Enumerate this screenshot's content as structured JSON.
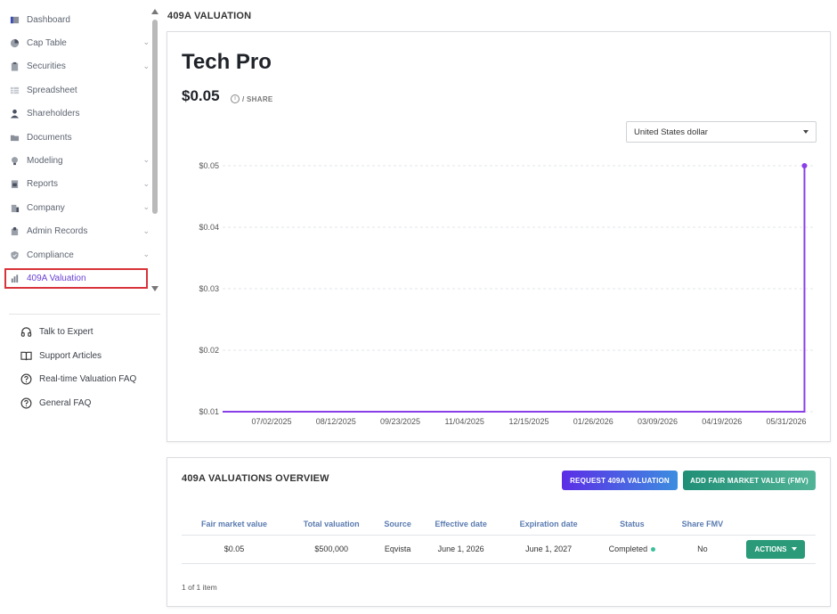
{
  "sidebar": {
    "items": [
      {
        "label": "Dashboard",
        "icon": "dashboard-icon",
        "chevron": false
      },
      {
        "label": "Cap Table",
        "icon": "pie-chart-icon",
        "chevron": true
      },
      {
        "label": "Securities",
        "icon": "clipboard-icon",
        "chevron": true
      },
      {
        "label": "Spreadsheet",
        "icon": "spreadsheet-icon",
        "chevron": false
      },
      {
        "label": "Shareholders",
        "icon": "user-icon",
        "chevron": false
      },
      {
        "label": "Documents",
        "icon": "folder-icon",
        "chevron": false
      },
      {
        "label": "Modeling",
        "icon": "lightbulb-icon",
        "chevron": true
      },
      {
        "label": "Reports",
        "icon": "report-icon",
        "chevron": true
      },
      {
        "label": "Company",
        "icon": "building-icon",
        "chevron": true
      },
      {
        "label": "Admin Records",
        "icon": "admin-icon",
        "chevron": true
      },
      {
        "label": "Compliance",
        "icon": "shield-icon",
        "chevron": true
      },
      {
        "label": "409A Valuation",
        "icon": "bar-chart-icon",
        "chevron": false,
        "active": true
      }
    ],
    "chevron_glyph": "⌄",
    "help": [
      {
        "label": "Talk to Expert",
        "icon": "headset-icon"
      },
      {
        "label": "Support Articles",
        "icon": "book-icon"
      },
      {
        "label": "Real-time Valuation FAQ",
        "icon": "question-circle-icon"
      },
      {
        "label": "General FAQ",
        "icon": "question-circle-icon"
      }
    ]
  },
  "header": {
    "title": "409A VALUATION"
  },
  "summary": {
    "company": "Tech Pro",
    "price": "$0.05",
    "info_glyph": "i",
    "per_share": "/ SHARE",
    "currency": "United States dollar"
  },
  "chart_data": {
    "type": "line",
    "x_ticks": [
      "07/02/2025",
      "08/12/2025",
      "09/23/2025",
      "11/04/2025",
      "12/15/2025",
      "01/26/2026",
      "03/09/2026",
      "04/19/2026",
      "05/31/2026"
    ],
    "y_ticks": [
      "$0.05",
      "$0.04",
      "$0.03",
      "$0.02",
      "$0.01"
    ],
    "ylim": [
      0.01,
      0.05
    ],
    "xlim": [
      "2025-06-01",
      "2026-06-08"
    ],
    "series": [
      {
        "points": [
          {
            "x": "2025-06-01",
            "y": 0.01
          },
          {
            "x": "2026-06-01",
            "y": 0.01
          },
          {
            "x": "2026-06-01",
            "y": 0.05
          }
        ]
      }
    ],
    "color": "#8a3ee8",
    "grid": true
  },
  "overview": {
    "title": "409A VALUATIONS OVERVIEW",
    "request_button": "REQUEST 409A VALUATION",
    "add_button": "ADD FAIR MARKET VALUE (FMV)",
    "columns": [
      "Fair market value",
      "Total valuation",
      "Source",
      "Effective date",
      "Expiration date",
      "Status",
      "Share FMV",
      ""
    ],
    "rows": [
      {
        "fmv": "$0.05",
        "total": "$500,000",
        "source": "Eqvista",
        "effective": "June 1, 2026",
        "expiration": "June 1, 2027",
        "status": "Completed",
        "share_fmv": "No",
        "action": "ACTIONS"
      }
    ],
    "pager": "1 of 1 item"
  }
}
